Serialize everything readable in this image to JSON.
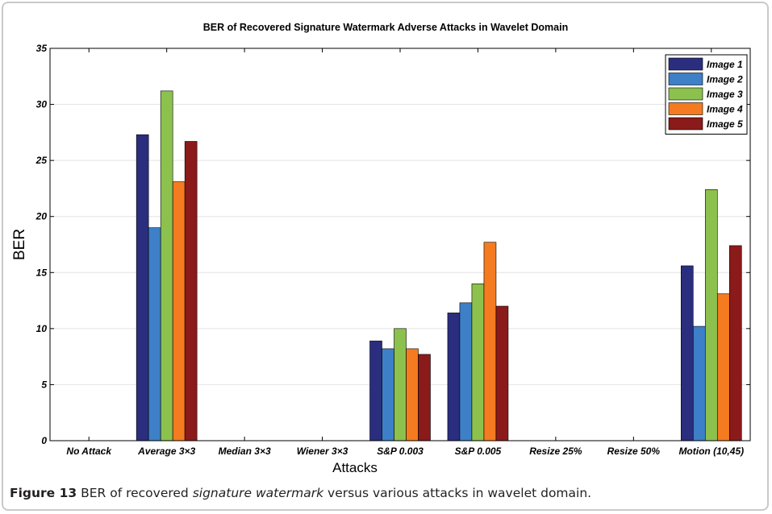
{
  "chart_data": {
    "type": "bar",
    "title": "BER of Recovered Signature Watermark Adverse Attacks in Wavelet Domain",
    "xlabel": "Attacks",
    "ylabel": "BER",
    "ylim": [
      0,
      35
    ],
    "yticks": [
      "0",
      "5",
      "10",
      "15",
      "20",
      "25",
      "30",
      "35"
    ],
    "ytick_values": [
      0,
      5,
      10,
      15,
      20,
      25,
      30,
      35
    ],
    "categories": [
      "No Attack",
      "Average 3×3",
      "Median 3×3",
      "Wiener 3×3",
      "S&P 0.003",
      "S&P 0.005",
      "Resize 25%",
      "Resize 50%",
      "Motion (10,45)"
    ],
    "series": [
      {
        "name": "Image 1",
        "color": "#2b2e7e",
        "values": [
          0,
          27.3,
          0,
          0,
          8.9,
          11.4,
          0,
          0,
          15.6
        ]
      },
      {
        "name": "Image 2",
        "color": "#3d80c8",
        "values": [
          0,
          19.0,
          0,
          0,
          8.2,
          12.3,
          0,
          0,
          10.2
        ]
      },
      {
        "name": "Image 3",
        "color": "#8cc14e",
        "values": [
          0,
          31.2,
          0,
          0,
          10.0,
          14.0,
          0,
          0,
          22.4
        ]
      },
      {
        "name": "Image 4",
        "color": "#f47b20",
        "values": [
          0,
          23.1,
          0,
          0,
          8.2,
          17.7,
          0,
          0,
          13.1
        ]
      },
      {
        "name": "Image 5",
        "color": "#8b1a1a",
        "values": [
          0,
          26.7,
          0,
          0,
          7.7,
          12.0,
          0,
          0,
          17.4
        ]
      }
    ],
    "grid": "horizontal",
    "legend_position": "top-right"
  },
  "caption": {
    "label": "Figure 13",
    "text_before": " BER of recovered ",
    "text_italic": "signature watermark",
    "text_after": " versus various attacks in wavelet domain."
  }
}
